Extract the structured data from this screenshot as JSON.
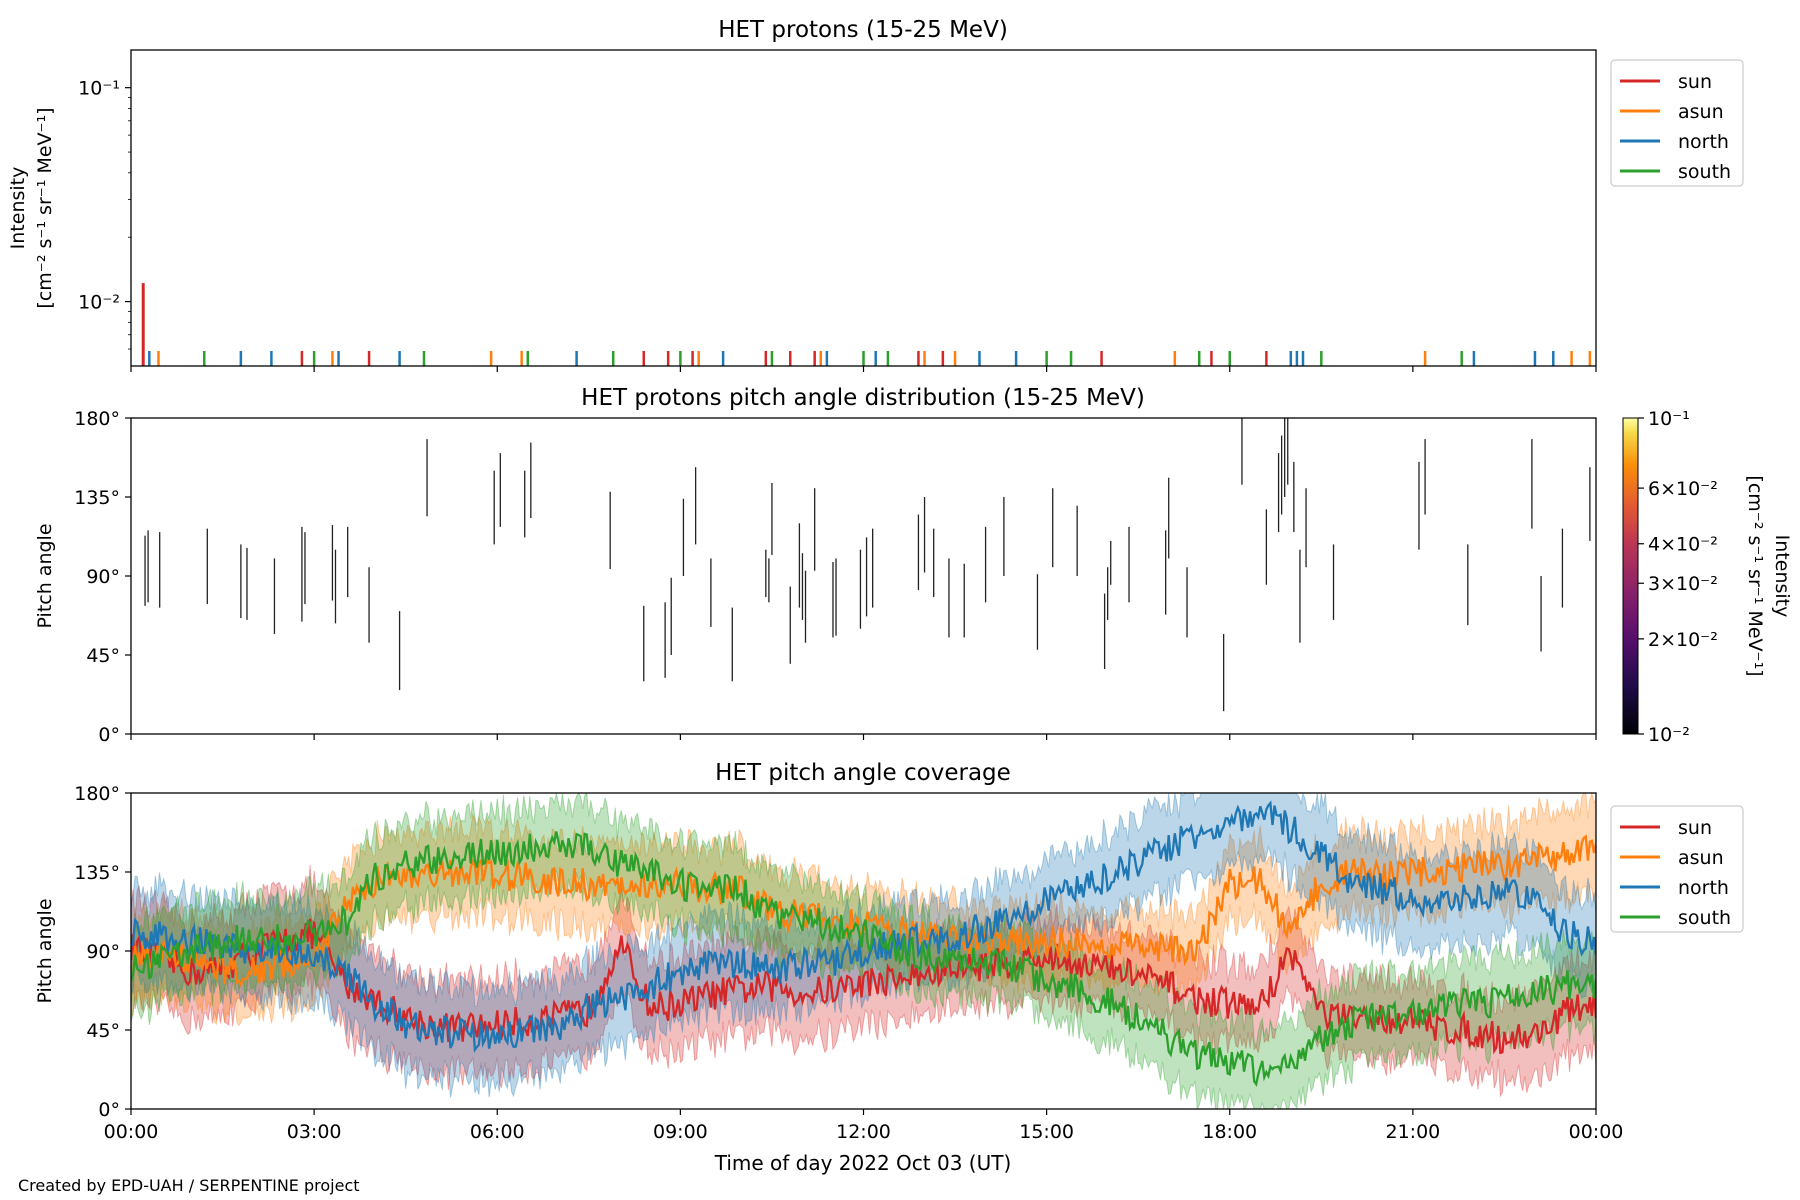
{
  "footer": "Created by EPD-UAH / SERPENTINE project",
  "colors": {
    "sun": "#d62728",
    "asun": "#ff7f0e",
    "north": "#1f77b4",
    "south": "#2ca02c"
  },
  "chart_data": [
    {
      "type": "line",
      "title": "HET protons (15-25 MeV)",
      "ylabel_lines": [
        "Intensity",
        "[cm⁻² s⁻¹ sr⁻¹ MeV⁻¹]"
      ],
      "yscale": "log",
      "ylim": [
        0.005,
        0.15
      ],
      "ytick_labels": [
        "10⁻²",
        "10⁻¹"
      ],
      "ytick_values": [
        0.01,
        0.1
      ],
      "xlim_hours": [
        0,
        24
      ],
      "legend": {
        "position": "outside-right-top",
        "entries": [
          "sun",
          "asun",
          "north",
          "south"
        ]
      },
      "spike": {
        "series": "sun",
        "x_hour": 0.2,
        "value": 0.0122
      },
      "series": [
        {
          "name": "sun",
          "x_hours": [
            0.2,
            2.8,
            3.9,
            8.4,
            8.8,
            9.2,
            10.4,
            10.8,
            11.2,
            12.9,
            13.3,
            15.9,
            17.7,
            18.6
          ]
        },
        {
          "name": "asun",
          "x_hours": [
            0.45,
            3.3,
            5.9,
            6.4,
            9.3,
            11.3,
            13.0,
            13.5,
            17.1,
            21.2,
            23.6,
            23.9
          ]
        },
        {
          "name": "north",
          "x_hours": [
            0.3,
            1.8,
            2.3,
            3.4,
            4.4,
            7.3,
            9.7,
            11.4,
            12.2,
            13.9,
            14.5,
            19.2,
            19.0,
            19.1,
            22.0,
            23.0,
            23.3
          ]
        },
        {
          "name": "south",
          "x_hours": [
            1.2,
            3.0,
            4.8,
            6.5,
            7.9,
            9.0,
            10.5,
            12.0,
            12.4,
            15.0,
            15.4,
            17.5,
            18.0,
            19.5,
            21.8
          ]
        }
      ]
    },
    {
      "type": "heatmap",
      "title": "HET protons pitch angle distribution (15-25 MeV)",
      "ylabel": "Pitch angle",
      "ylim": [
        0,
        180
      ],
      "ytick_labels": [
        "0°",
        "45°",
        "90°",
        "135°",
        "180°"
      ],
      "colorbar": {
        "label_lines": [
          "Intensity",
          "[cm⁻² s⁻¹ sr⁻¹ MeV⁻¹]"
        ],
        "scale": "log",
        "range": [
          0.01,
          0.1
        ],
        "tick_labels": [
          "10⁻²",
          "2×10⁻²",
          "3×10⁻²",
          "4×10⁻²",
          "6×10⁻²",
          "10⁻¹"
        ],
        "tick_values": [
          0.01,
          0.02,
          0.03,
          0.04,
          0.06,
          0.1
        ],
        "colormap": "inferno"
      },
      "segments": [
        [
          0.23,
          73,
          113
        ],
        [
          0.28,
          75,
          116
        ],
        [
          0.47,
          72,
          115
        ],
        [
          1.25,
          74,
          117
        ],
        [
          1.8,
          66,
          108
        ],
        [
          1.9,
          65,
          106
        ],
        [
          2.35,
          57,
          100
        ],
        [
          2.8,
          64,
          118
        ],
        [
          2.85,
          74,
          115
        ],
        [
          3.3,
          76,
          119
        ],
        [
          3.35,
          63,
          105
        ],
        [
          3.55,
          78,
          118
        ],
        [
          3.9,
          52,
          95
        ],
        [
          4.4,
          25,
          70
        ],
        [
          4.85,
          124,
          168
        ],
        [
          5.95,
          108,
          150
        ],
        [
          6.05,
          118,
          160
        ],
        [
          6.45,
          112,
          150
        ],
        [
          6.55,
          123,
          166
        ],
        [
          7.85,
          94,
          138
        ],
        [
          8.4,
          30,
          73
        ],
        [
          8.75,
          32,
          75
        ],
        [
          8.85,
          45,
          89
        ],
        [
          9.05,
          90,
          134
        ],
        [
          9.25,
          108,
          152
        ],
        [
          9.5,
          61,
          100
        ],
        [
          9.85,
          30,
          72
        ],
        [
          10.4,
          78,
          105
        ],
        [
          10.45,
          75,
          100
        ],
        [
          10.5,
          102,
          143
        ],
        [
          10.8,
          40,
          84
        ],
        [
          10.95,
          72,
          120
        ],
        [
          11.0,
          65,
          103
        ],
        [
          11.05,
          52,
          93
        ],
        [
          11.2,
          93,
          140
        ],
        [
          11.5,
          55,
          98
        ],
        [
          11.55,
          56,
          100
        ],
        [
          11.95,
          60,
          105
        ],
        [
          12.05,
          67,
          112
        ],
        [
          12.15,
          72,
          117
        ],
        [
          12.9,
          82,
          125
        ],
        [
          13.0,
          92,
          135
        ],
        [
          13.15,
          78,
          117
        ],
        [
          13.4,
          55,
          100
        ],
        [
          13.65,
          55,
          97
        ],
        [
          14.0,
          75,
          118
        ],
        [
          14.3,
          90,
          135
        ],
        [
          14.85,
          48,
          91
        ],
        [
          15.1,
          95,
          140
        ],
        [
          15.5,
          90,
          130
        ],
        [
          15.95,
          37,
          80
        ],
        [
          16.0,
          65,
          95
        ],
        [
          16.05,
          85,
          110
        ],
        [
          16.35,
          75,
          118
        ],
        [
          16.95,
          68,
          116
        ],
        [
          17.0,
          100,
          146
        ],
        [
          17.3,
          55,
          95
        ],
        [
          17.9,
          13,
          57
        ],
        [
          18.2,
          142,
          180
        ],
        [
          18.6,
          85,
          128
        ],
        [
          18.8,
          115,
          160
        ],
        [
          18.85,
          125,
          170
        ],
        [
          18.9,
          135,
          180
        ],
        [
          18.95,
          142,
          180
        ],
        [
          19.05,
          115,
          155
        ],
        [
          19.15,
          52,
          105
        ],
        [
          19.25,
          95,
          140
        ],
        [
          19.7,
          65,
          108
        ],
        [
          21.1,
          105,
          155
        ],
        [
          21.2,
          125,
          168
        ],
        [
          21.9,
          62,
          108
        ],
        [
          22.95,
          117,
          168
        ],
        [
          23.1,
          47,
          90
        ],
        [
          23.45,
          72,
          117
        ],
        [
          23.9,
          110,
          152
        ]
      ]
    },
    {
      "type": "area",
      "title": "HET pitch angle coverage",
      "ylabel": "Pitch angle",
      "xlabel": "Time of day 2022 Oct 03 (UT)",
      "ylim": [
        0,
        180
      ],
      "ytick_labels": [
        "0°",
        "45°",
        "90°",
        "135°",
        "180°"
      ],
      "xtick_labels": [
        "00:00",
        "03:00",
        "06:00",
        "09:00",
        "12:00",
        "15:00",
        "18:00",
        "21:00",
        "00:00"
      ],
      "xtick_hours": [
        0,
        3,
        6,
        9,
        12,
        15,
        18,
        21,
        24
      ],
      "legend": {
        "position": "outside-right-top",
        "entries": [
          "sun",
          "asun",
          "north",
          "south"
        ]
      },
      "series": [
        {
          "name": "sun",
          "x_hours": [
            0,
            0.5,
            1,
            1.5,
            2,
            2.5,
            3,
            3.5,
            4,
            4.5,
            5,
            5.5,
            6,
            6.5,
            7,
            7.5,
            8,
            8.5,
            9,
            9.5,
            10,
            10.5,
            11,
            11.5,
            12,
            12.5,
            13,
            13.5,
            14,
            14.5,
            15,
            15.5,
            16,
            16.5,
            17,
            17.5,
            18,
            18.5,
            19,
            19.5,
            20,
            20.5,
            21,
            21.5,
            22,
            22.5,
            23,
            23.5,
            24
          ],
          "values": [
            92,
            85,
            78,
            80,
            90,
            96,
            100,
            72,
            62,
            52,
            47,
            46,
            48,
            50,
            52,
            56,
            95,
            58,
            60,
            65,
            68,
            70,
            66,
            68,
            72,
            74,
            76,
            80,
            82,
            84,
            86,
            84,
            80,
            76,
            70,
            62,
            60,
            58,
            90,
            55,
            50,
            52,
            50,
            46,
            44,
            40,
            42,
            55,
            60
          ],
          "band": [
            28,
            28,
            28,
            28,
            28,
            28,
            28,
            28,
            28,
            26,
            26,
            26,
            26,
            26,
            26,
            26,
            26,
            26,
            26,
            26,
            26,
            26,
            26,
            26,
            24,
            24,
            22,
            22,
            22,
            22,
            22,
            22,
            22,
            22,
            22,
            22,
            22,
            22,
            22,
            22,
            22,
            22,
            22,
            22,
            22,
            22,
            26,
            26,
            26
          ]
        },
        {
          "name": "asun",
          "x_hours": [
            0,
            0.5,
            1,
            1.5,
            2,
            2.5,
            3,
            3.5,
            4,
            4.5,
            5,
            5.5,
            6,
            6.5,
            7,
            7.5,
            8,
            8.5,
            9,
            9.5,
            10,
            10.5,
            11,
            11.5,
            12,
            12.5,
            13,
            13.5,
            14,
            14.5,
            15,
            15.5,
            16,
            16.5,
            17,
            17.5,
            18,
            18.5,
            19,
            19.5,
            20,
            20.5,
            21,
            21.5,
            22,
            22.5,
            23,
            23.5,
            24
          ],
          "values": [
            84,
            88,
            85,
            80,
            78,
            84,
            82,
            118,
            130,
            134,
            136,
            134,
            134,
            132,
            130,
            128,
            125,
            128,
            128,
            126,
            124,
            112,
            110,
            108,
            104,
            102,
            98,
            98,
            96,
            96,
            96,
            94,
            92,
            92,
            90,
            92,
            128,
            132,
            98,
            130,
            135,
            132,
            136,
            134,
            138,
            140,
            142,
            145,
            150
          ],
          "band": [
            24,
            24,
            24,
            24,
            24,
            24,
            24,
            24,
            24,
            24,
            24,
            24,
            24,
            24,
            24,
            24,
            24,
            24,
            24,
            24,
            24,
            22,
            22,
            22,
            20,
            20,
            20,
            20,
            20,
            20,
            20,
            20,
            20,
            20,
            20,
            20,
            22,
            22,
            22,
            22,
            22,
            22,
            22,
            22,
            22,
            24,
            24,
            26,
            26
          ]
        },
        {
          "name": "north",
          "x_hours": [
            0,
            0.5,
            1,
            1.5,
            2,
            2.5,
            3,
            3.5,
            4,
            4.5,
            5,
            5.5,
            6,
            6.5,
            7,
            7.5,
            8,
            8.5,
            9,
            9.5,
            10,
            10.5,
            11,
            11.5,
            12,
            12.5,
            13,
            13.5,
            14,
            14.5,
            15,
            15.5,
            16,
            16.5,
            17,
            17.5,
            18,
            18.5,
            19,
            19.5,
            20,
            20.5,
            21,
            21.5,
            22,
            22.5,
            23,
            23.5,
            24
          ],
          "values": [
            100,
            98,
            96,
            92,
            88,
            90,
            90,
            78,
            60,
            48,
            44,
            42,
            42,
            44,
            46,
            58,
            62,
            70,
            78,
            82,
            84,
            80,
            82,
            84,
            90,
            94,
            96,
            98,
            104,
            110,
            118,
            126,
            132,
            140,
            150,
            158,
            162,
            168,
            160,
            145,
            130,
            125,
            120,
            120,
            118,
            125,
            120,
            100,
            95
          ],
          "band": [
            26,
            26,
            26,
            26,
            26,
            26,
            26,
            26,
            26,
            26,
            26,
            26,
            26,
            26,
            26,
            26,
            26,
            26,
            26,
            26,
            26,
            24,
            24,
            24,
            22,
            22,
            22,
            22,
            22,
            22,
            22,
            22,
            24,
            24,
            24,
            24,
            26,
            26,
            26,
            26,
            26,
            26,
            26,
            26,
            26,
            26,
            26,
            26,
            26
          ]
        },
        {
          "name": "south",
          "x_hours": [
            0,
            0.5,
            1,
            1.5,
            2,
            2.5,
            3,
            3.5,
            4,
            4.5,
            5,
            5.5,
            6,
            6.5,
            7,
            7.5,
            8,
            8.5,
            9,
            9.5,
            10,
            10.5,
            11,
            11.5,
            12,
            12.5,
            13,
            13.5,
            14,
            14.5,
            15,
            15.5,
            16,
            16.5,
            17,
            17.5,
            18,
            18.5,
            19,
            19.5,
            20,
            20.5,
            21,
            21.5,
            22,
            22.5,
            23,
            23.5,
            24
          ],
          "values": [
            80,
            86,
            90,
            94,
            98,
            96,
            100,
            106,
            132,
            140,
            142,
            144,
            146,
            148,
            150,
            148,
            140,
            136,
            128,
            125,
            124,
            110,
            108,
            104,
            100,
            92,
            88,
            86,
            84,
            80,
            74,
            68,
            62,
            52,
            40,
            30,
            28,
            20,
            30,
            40,
            50,
            52,
            55,
            58,
            60,
            62,
            66,
            70,
            72
          ],
          "band": [
            24,
            24,
            24,
            24,
            24,
            24,
            24,
            24,
            24,
            24,
            24,
            24,
            24,
            24,
            24,
            24,
            24,
            24,
            24,
            24,
            24,
            22,
            22,
            22,
            20,
            20,
            20,
            20,
            20,
            20,
            20,
            22,
            22,
            22,
            24,
            24,
            24,
            24,
            24,
            24,
            24,
            24,
            24,
            24,
            24,
            24,
            24,
            24,
            24
          ]
        }
      ]
    }
  ]
}
